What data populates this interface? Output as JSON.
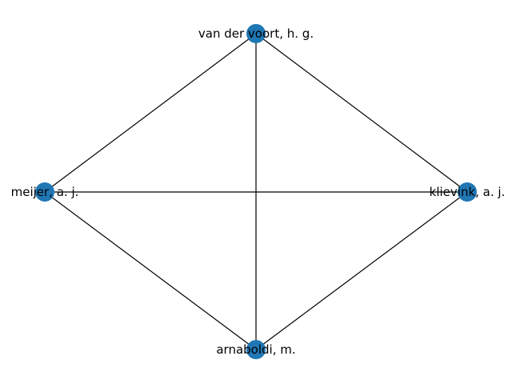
{
  "graph": {
    "node_color": "#1f77b4",
    "edge_color": "#000000",
    "nodes": [
      {
        "id": "voort",
        "label": "van der voort, h. g."
      },
      {
        "id": "meijer",
        "label": "meijer, a. j."
      },
      {
        "id": "klievink",
        "label": "klievink, a. j."
      },
      {
        "id": "arnaboldi",
        "label": "arnaboldi, m."
      }
    ],
    "edges": [
      {
        "source": "voort",
        "target": "meijer"
      },
      {
        "source": "voort",
        "target": "klievink"
      },
      {
        "source": "voort",
        "target": "arnaboldi"
      },
      {
        "source": "meijer",
        "target": "klievink"
      },
      {
        "source": "meijer",
        "target": "arnaboldi"
      },
      {
        "source": "klievink",
        "target": "arnaboldi"
      }
    ]
  }
}
